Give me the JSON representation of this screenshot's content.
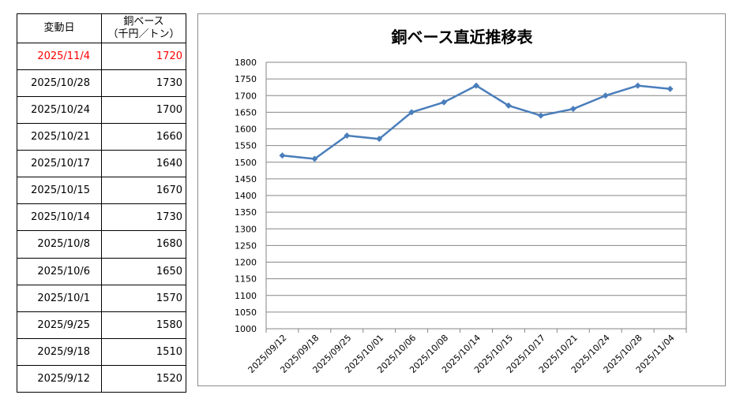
{
  "table": {
    "header": {
      "date": "変動日",
      "value_line1": "銅ベース",
      "value_line2": "（千円／トン）"
    },
    "rows": [
      {
        "date": "2025/11/4",
        "value": "1720",
        "highlight": true
      },
      {
        "date": "2025/10/28",
        "value": "1730"
      },
      {
        "date": "2025/10/24",
        "value": "1700"
      },
      {
        "date": "2025/10/21",
        "value": "1660"
      },
      {
        "date": "2025/10/17",
        "value": "1640"
      },
      {
        "date": "2025/10/15",
        "value": "1670"
      },
      {
        "date": "2025/10/14",
        "value": "1730"
      },
      {
        "date": "2025/10/8",
        "value": "1680"
      },
      {
        "date": "2025/10/6",
        "value": "1650"
      },
      {
        "date": "2025/10/1",
        "value": "1570"
      },
      {
        "date": "2025/9/25",
        "value": "1580"
      },
      {
        "date": "2025/9/18",
        "value": "1510"
      },
      {
        "date": "2025/9/12",
        "value": "1520"
      }
    ],
    "highlight_color": "#ff0000"
  },
  "chart_data": {
    "type": "line",
    "title": "銅ベース直近推移表",
    "xlabel": "",
    "ylabel": "",
    "categories": [
      "2025/09/12",
      "2025/09/18",
      "2025/09/25",
      "2025/10/01",
      "2025/10/06",
      "2025/10/08",
      "2025/10/14",
      "2025/10/15",
      "2025/10/17",
      "2025/10/21",
      "2025/10/24",
      "2025/10/28",
      "2025/11/04"
    ],
    "series": [
      {
        "values": [
          1520,
          1510,
          1580,
          1570,
          1650,
          1680,
          1730,
          1670,
          1640,
          1660,
          1700,
          1730,
          1720
        ],
        "color": "#4a7ebb",
        "marker": "diamond"
      }
    ],
    "ylim": [
      1000,
      1800
    ],
    "ystep": 50,
    "grid": true,
    "legend": "none"
  }
}
